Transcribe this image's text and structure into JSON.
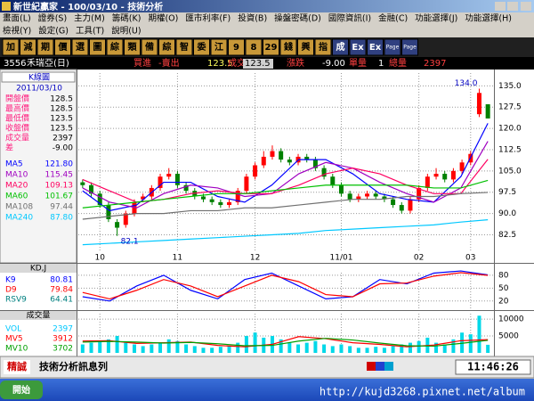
{
  "window": {
    "title": "新世紀贏家 - 100/03/10 - 技術分析"
  },
  "menu": {
    "row1": [
      "畫面(L)",
      "證券(S)",
      "主力(M)",
      "籌碼(K)",
      "期權(O)",
      "匯市利率(F)",
      "投資(B)",
      "操盤密碼(D)",
      "國際資訊(I)",
      "金融(C)",
      "功能選擇(J)",
      "功能選擇(H)"
    ],
    "row2": [
      "檢視(Y)",
      "設定(G)",
      "工具(T)",
      "說明(U)"
    ]
  },
  "toolbar": [
    "加",
    "減",
    "期",
    "價",
    "選",
    "圖",
    "綜",
    "類",
    "備",
    "綜",
    "智",
    "委",
    "江",
    "9",
    "8",
    "29",
    "錢",
    "興",
    "指",
    "成",
    "Ex",
    "Ex",
    "Page",
    "Page"
  ],
  "quote": {
    "code": "3556",
    "name": "禾瑞亞(日)",
    "items": [
      {
        "text": "買進",
        "color": "#ff4040"
      },
      {
        "text": "-賣出",
        "color": "#ff4040"
      },
      {
        "text": "123.5",
        "color": "#ffff60"
      },
      {
        "text": "成交",
        "color": "#ff4040"
      },
      {
        "text": "123.5",
        "color": "#000000"
      },
      {
        "text": "漲跌",
        "color": "#ff4040"
      },
      {
        "text": "-9.00",
        "color": "#ffffff"
      },
      {
        "text": "單量",
        "color": "#ff4040"
      },
      {
        "text": "1",
        "color": "#ffffff"
      },
      {
        "text": "總量",
        "color": "#ff4040"
      },
      {
        "text": "2397",
        "color": "#ff4040"
      }
    ]
  },
  "info_panel": {
    "header": "K線圖",
    "date": "2011/03/10",
    "rows": [
      {
        "label": "開盤價",
        "value": "128.5"
      },
      {
        "label": "最高價",
        "value": "128.5"
      },
      {
        "label": "最低價",
        "value": "123.5"
      },
      {
        "label": "收盤價",
        "value": "123.5"
      },
      {
        "label": "成交量",
        "value": "2397"
      },
      {
        "label": "差",
        "value": "-9.00"
      }
    ]
  },
  "price_chart": {
    "type": "candlestick",
    "categories": [
      null,
      null,
      "10",
      null,
      null,
      null,
      null,
      null,
      null,
      null,
      null,
      "11",
      null,
      null,
      null,
      null,
      null,
      null,
      null,
      null,
      "12",
      null,
      null,
      null,
      null,
      null,
      null,
      null,
      null,
      null,
      "11/01",
      null,
      null,
      null,
      null,
      null,
      null,
      null,
      null,
      "02",
      null,
      null,
      null,
      null,
      null,
      "03",
      null,
      null
    ],
    "open": [
      101,
      100,
      97,
      93,
      87,
      86,
      90,
      95,
      96,
      99,
      103,
      104,
      100,
      98,
      96,
      95,
      94,
      93,
      94,
      98,
      103,
      107,
      110,
      112,
      109,
      108,
      110,
      109,
      106,
      103,
      100,
      97,
      95,
      96,
      97,
      96,
      95,
      93,
      91,
      95,
      99,
      103,
      104,
      102,
      105,
      108,
      125,
      128.5
    ],
    "high": [
      102,
      101,
      98,
      94,
      88,
      91,
      95,
      97,
      100,
      104,
      106,
      105,
      101,
      99,
      97,
      96,
      95,
      95,
      99,
      104,
      108,
      112,
      114,
      113,
      110,
      111,
      111,
      110,
      107,
      104,
      101,
      98,
      97,
      98,
      98,
      97,
      96,
      94,
      96,
      100,
      104,
      106,
      105,
      106,
      109,
      112,
      134,
      128.5
    ],
    "low": [
      99,
      96,
      92,
      87,
      82.1,
      85,
      89,
      94,
      95,
      98,
      102,
      99,
      97,
      95,
      94,
      93,
      92,
      92,
      93,
      97,
      102,
      106,
      109,
      108,
      107,
      107,
      108,
      105,
      102,
      99,
      96,
      94,
      94,
      95,
      95,
      94,
      92,
      90,
      90,
      94,
      98,
      102,
      101,
      101,
      104,
      107,
      124,
      123.5
    ],
    "close": [
      100,
      97,
      93,
      88,
      85,
      90,
      94,
      96,
      99,
      103,
      104,
      100,
      98,
      96,
      95,
      94,
      93,
      94,
      98,
      103,
      107,
      110,
      112,
      109,
      108,
      110,
      109,
      106,
      103,
      100,
      97,
      95,
      96,
      97,
      96,
      95,
      93,
      91,
      95,
      99,
      103,
      104,
      102,
      105,
      108,
      111,
      132.5,
      123.5
    ],
    "high_label": "134.0",
    "low_label": "82.1",
    "ylim": [
      77,
      139.5
    ],
    "yticks": [
      {
        "value": 135,
        "label": "135.0"
      },
      127.5,
      {
        "value": 120,
        "label": "120.0"
      },
      112.5,
      {
        "value": 105,
        "label": "105.0"
      },
      97.5,
      {
        "value": 90,
        "label": "90.0"
      },
      82.5
    ],
    "up_color": "#ff0000",
    "down_color": "#008000",
    "ma": [
      {
        "name": "MA5",
        "color": "#0000ff",
        "value_label": "121.80",
        "values": [
          98,
          91,
          93,
          101,
          101,
          96,
          94,
          100,
          109,
          109,
          104,
          97,
          95,
          94,
          103,
          121.8
        ]
      },
      {
        "name": "MA10",
        "color": "#a000c0",
        "value_label": "115.45",
        "values": [
          99,
          94,
          92,
          97,
          100,
          99,
          96,
          97,
          104,
          108,
          106,
          101,
          97,
          94,
          99,
          115.45
        ]
      },
      {
        "name": "MA20",
        "color": "#ff0060",
        "value_label": "109.13",
        "values": [
          102,
          98,
          94,
          95,
          97,
          98,
          97,
          97,
          100,
          104,
          106,
          104,
          100,
          97,
          97,
          109.13
        ]
      },
      {
        "name": "MA60",
        "color": "#00c000",
        "value_label": "101.67",
        "values": [
          92,
          93,
          94,
          95,
          96,
          97,
          97,
          98,
          99,
          100,
          100,
          100,
          100,
          99,
          99,
          101.67
        ]
      },
      {
        "name": "MA108",
        "color": "#707070",
        "value_label": "97.44",
        "values": [
          88,
          89,
          90,
          90,
          91,
          91,
          92,
          92,
          93,
          94,
          95,
          95,
          96,
          96,
          97,
          97.44
        ]
      },
      {
        "name": "MA240",
        "color": "#00c8ff",
        "value_label": "87.80",
        "values": [
          79,
          79.5,
          80,
          80.5,
          81,
          81.5,
          82,
          82.5,
          83,
          84,
          84.5,
          85,
          85.5,
          86,
          87,
          87.8
        ]
      }
    ]
  },
  "kd_chart": {
    "type": "line",
    "title": "KD,J",
    "ylim": [
      3,
      86
    ],
    "yticks": [
      20,
      50,
      80
    ],
    "series": [
      {
        "name": "K9",
        "color": "#0000ff",
        "value_label": "80.81",
        "values": [
          30,
          20,
          55,
          80,
          45,
          25,
          70,
          85,
          55,
          25,
          30,
          70,
          60,
          85,
          90,
          80.81
        ]
      },
      {
        "name": "D9",
        "color": "#ff0000",
        "value_label": "79.84",
        "values": [
          40,
          25,
          45,
          70,
          55,
          30,
          55,
          80,
          65,
          35,
          30,
          60,
          62,
          78,
          86,
          79.84
        ]
      }
    ],
    "extra": {
      "name": "RSV9",
      "color": "#008080",
      "value_label": "64.41"
    }
  },
  "volume_chart": {
    "type": "bar",
    "title": "成交量",
    "ylim": [
      0,
      11600
    ],
    "yticks": [
      5000,
      10000
    ],
    "color": "#00d8e8",
    "values": [
      2500,
      3000,
      3500,
      4000,
      5000,
      3000,
      2500,
      2000,
      2500,
      3000,
      4000,
      3500,
      2500,
      2000,
      1500,
      1500,
      1800,
      2000,
      3000,
      5000,
      6000,
      4500,
      5000,
      4000,
      3000,
      2500,
      3000,
      3500,
      2500,
      2000,
      2500,
      2000,
      1500,
      1500,
      1800,
      1500,
      2000,
      2500,
      3000,
      3500,
      4500,
      3000,
      2500,
      4000,
      6000,
      5500,
      11000,
      2397
    ],
    "legend": {
      "name": "VOL",
      "color": "#00c8ff",
      "value_label": "2397"
    },
    "series": [
      {
        "name": "MV5",
        "color": "#ff0000",
        "value_label": "3912",
        "values": [
          3500,
          3600,
          2800,
          3000,
          3200,
          2200,
          1800,
          2500,
          4800,
          4200,
          3000,
          2500,
          1800,
          2300,
          3600,
          3912
        ]
      },
      {
        "name": "MV10",
        "color": "#00a000",
        "value_label": "3702",
        "values": [
          3200,
          3400,
          3200,
          2900,
          3100,
          2700,
          2100,
          2200,
          3500,
          4300,
          3800,
          2900,
          2100,
          2000,
          2800,
          3702
        ]
      }
    ]
  },
  "status_bar": {
    "brand": "精誠",
    "message": "技術分析訊息列",
    "time": "11:46:26"
  },
  "taskbar": {
    "start": "開始",
    "watermark": "http://kujd3268.pixnet.net/album"
  }
}
